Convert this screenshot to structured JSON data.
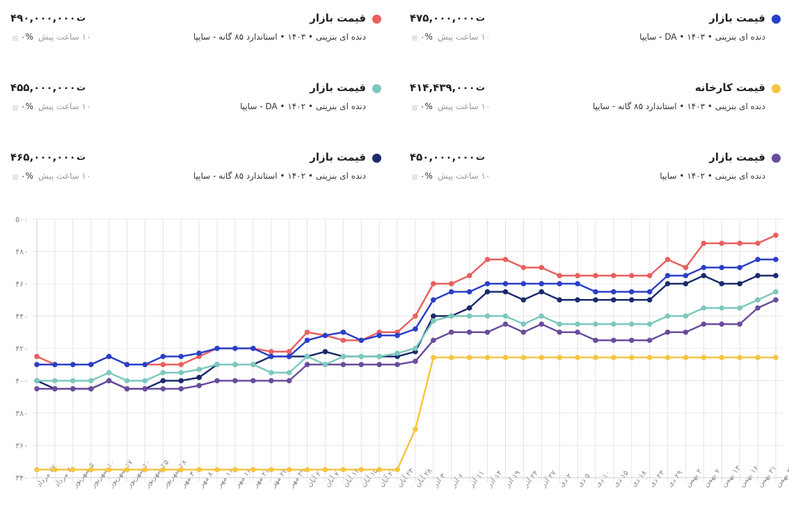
{
  "cards": [
    {
      "title": "قیمت بازار",
      "subtitle": "دنده ای بنزینی • ۱۴۰۳ • DA - سایپا",
      "price": "۴۷۵,۰۰۰,۰۰۰",
      "currency": "ت",
      "change": "۰%",
      "time": "۱۰ ساعت پیش",
      "color": "#2a3fc9"
    },
    {
      "title": "قیمت بازار",
      "subtitle": "دنده ای بنزینی • ۱۴۰۳ • استاندارد ۸۵ گانه - سایپا",
      "price": "۴۹۰,۰۰۰,۰۰۰",
      "currency": "ت",
      "change": "۰%",
      "time": "۱۰ ساعت پیش",
      "color": "#e8605e"
    },
    {
      "title": "قیمت کارخانه",
      "subtitle": "دنده ای بنزینی • ۱۴۰۳ • استاندارد ۸۵ گانه - سایپا",
      "price": "۴۱۴,۴۳۹,۰۰۰",
      "currency": "ت",
      "change": "۰%",
      "time": "۱۰ ساعت پیش",
      "color": "#f5c542"
    },
    {
      "title": "قیمت بازار",
      "subtitle": "دنده ای بنزینی • ۱۴۰۲ • DA - سایپا",
      "price": "۴۵۵,۰۰۰,۰۰۰",
      "currency": "ت",
      "change": "۰%",
      "time": "۱۰ ساعت پیش",
      "color": "#7cc8bd"
    },
    {
      "title": "قیمت بازار",
      "subtitle": "دنده ای بنزینی • ۱۴۰۲ • سایپا",
      "price": "۴۵۰,۰۰۰,۰۰۰",
      "currency": "ت",
      "change": "۰%",
      "time": "۱۰ ساعت پیش",
      "color": "#6a4c9c"
    },
    {
      "title": "قیمت بازار",
      "subtitle": "دنده ای بنزینی • ۱۴۰۲ • استاندارد ۸۵ گانه - سایپا",
      "price": "۴۶۵,۰۰۰,۰۰۰",
      "currency": "ت",
      "change": "۰%",
      "time": "۱۰ ساعت پیش",
      "color": "#1a2a6c"
    }
  ],
  "chart_data": {
    "type": "line",
    "ylim": [
      340,
      500
    ],
    "grid": true,
    "yticks": [
      {
        "value": 500,
        "label": "۵۰۰"
      },
      {
        "value": 480,
        "label": "۴۸۰"
      },
      {
        "value": 460,
        "label": "۴۶۰"
      },
      {
        "value": 440,
        "label": "۴۴۰"
      },
      {
        "value": 420,
        "label": "۴۲۰"
      },
      {
        "value": 400,
        "label": "۴۰۰"
      },
      {
        "value": 380,
        "label": "۳۸۰"
      },
      {
        "value": 360,
        "label": "۳۶۰"
      },
      {
        "value": 340,
        "label": "۳۴۰"
      }
    ],
    "categories": [
      "۲۷ مرداد",
      "۳۰ مرداد",
      "۵ شهریور",
      "۱۰ شهریور",
      "۱۷ شهریور",
      "۲۰ شهریور",
      "۲۵ شهریور",
      "۲۸ شهریور",
      "۳ مهر",
      "۸ مهر",
      "۱۱ مهر",
      "۱۶ مهر",
      "۲۱ مهر",
      "۲۴ مهر",
      "۲۹ مهر",
      "۲ آبان",
      "۷ آبان",
      "۱۲ آبان",
      "۱۵ آبان",
      "۲۰ آبان",
      "۲۳ آبان",
      "۲۸ آبان",
      "۳ آذر",
      "۶ آذر",
      "۱۱ آذر",
      "۱۴ آذر",
      "۱۹ آذر",
      "۲۴ آذر",
      "۲۷ آذر",
      "۲ دی",
      "۵ دی",
      "۱۰ دی",
      "۱۵ دی",
      "۱۸ دی",
      "۲۳ دی",
      "۲۹ دی",
      "۲ بهمن",
      "۷ بهمن",
      "۱۳ بهمن",
      "۱۶ بهمن",
      "۲۱ بهمن",
      "۲۷ بهمن"
    ],
    "series": [
      {
        "color": "#f5c542",
        "values": [
          345,
          345,
          345,
          345,
          345,
          345,
          345,
          345,
          345,
          345,
          345,
          345,
          345,
          345,
          345,
          345,
          345,
          345,
          345,
          345,
          345,
          370,
          414.4,
          414.4,
          414.4,
          414.4,
          414.4,
          414.4,
          414.4,
          414.4,
          414.4,
          414.4,
          414.4,
          414.4,
          414.4,
          414.4,
          414.4,
          414.4,
          414.4,
          414.4,
          414.4,
          414.4
        ]
      },
      {
        "color": "#e8605e",
        "values": [
          415,
          410,
          410,
          410,
          415,
          410,
          410,
          410,
          410,
          415,
          420,
          420,
          420,
          418,
          418,
          430,
          428,
          425,
          425,
          430,
          430,
          440,
          460,
          460,
          465,
          475,
          475,
          470,
          470,
          465,
          465,
          465,
          465,
          465,
          465,
          475,
          470,
          485,
          485,
          485,
          485,
          490
        ]
      },
      {
        "color": "#1a2a6c",
        "values": [
          400,
          395,
          395,
          395,
          400,
          395,
          395,
          400,
          400,
          402,
          410,
          410,
          410,
          415,
          415,
          415,
          418,
          415,
          415,
          415,
          415,
          418,
          440,
          440,
          445,
          455,
          455,
          450,
          455,
          450,
          450,
          450,
          450,
          450,
          450,
          460,
          460,
          465,
          460,
          460,
          465,
          465
        ]
      },
      {
        "color": "#2a3fc9",
        "values": [
          410,
          410,
          410,
          410,
          415,
          410,
          410,
          415,
          415,
          417,
          420,
          420,
          420,
          415,
          415,
          425,
          428,
          430,
          425,
          428,
          428,
          432,
          450,
          455,
          455,
          460,
          460,
          460,
          460,
          460,
          460,
          455,
          455,
          455,
          455,
          465,
          465,
          470,
          470,
          470,
          475,
          475
        ]
      },
      {
        "color": "#6a4c9c",
        "values": [
          395,
          395,
          395,
          395,
          400,
          395,
          395,
          395,
          395,
          397,
          400,
          400,
          400,
          400,
          400,
          410,
          410,
          410,
          410,
          410,
          410,
          412,
          425,
          430,
          430,
          430,
          435,
          430,
          435,
          430,
          430,
          425,
          425,
          425,
          425,
          430,
          430,
          435,
          435,
          435,
          445,
          450
        ]
      },
      {
        "color": "#7cc8bd",
        "values": [
          400,
          400,
          400,
          400,
          405,
          400,
          400,
          405,
          405,
          407,
          410,
          410,
          410,
          405,
          405,
          415,
          410,
          415,
          415,
          415,
          417,
          420,
          437,
          440,
          440,
          440,
          440,
          435,
          440,
          435,
          435,
          435,
          435,
          435,
          435,
          440,
          440,
          445,
          445,
          445,
          450,
          455
        ]
      }
    ]
  }
}
